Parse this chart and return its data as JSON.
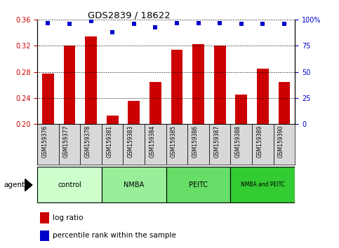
{
  "title": "GDS2839 / 18622",
  "samples": [
    "GSM159376",
    "GSM159377",
    "GSM159378",
    "GSM159381",
    "GSM159383",
    "GSM159384",
    "GSM159385",
    "GSM159386",
    "GSM159387",
    "GSM159388",
    "GSM159389",
    "GSM159390"
  ],
  "log_ratio": [
    0.277,
    0.321,
    0.334,
    0.213,
    0.236,
    0.265,
    0.314,
    0.323,
    0.32,
    0.245,
    0.285,
    0.265
  ],
  "percentile": [
    97,
    96,
    99,
    88,
    96,
    93,
    97,
    97,
    97,
    96,
    96,
    96
  ],
  "bar_color": "#cc0000",
  "dot_color": "#0000cc",
  "ylim_left": [
    0.2,
    0.36
  ],
  "ylim_right": [
    0,
    100
  ],
  "yticks_left": [
    0.2,
    0.24,
    0.28,
    0.32,
    0.36
  ],
  "yticks_right": [
    0,
    25,
    50,
    75,
    100
  ],
  "groups": [
    {
      "label": "control",
      "start": 0,
      "end": 3,
      "color": "#ccffcc"
    },
    {
      "label": "NMBA",
      "start": 3,
      "end": 6,
      "color": "#99ee99"
    },
    {
      "label": "PEITC",
      "start": 6,
      "end": 9,
      "color": "#66dd66"
    },
    {
      "label": "NMBA and PEITC",
      "start": 9,
      "end": 12,
      "color": "#33cc33"
    }
  ],
  "agent_label": "agent",
  "legend_bar_label": "log ratio",
  "legend_dot_label": "percentile rank within the sample",
  "bar_color_left": "#cc0000",
  "dot_color_blue": "#0000cc"
}
